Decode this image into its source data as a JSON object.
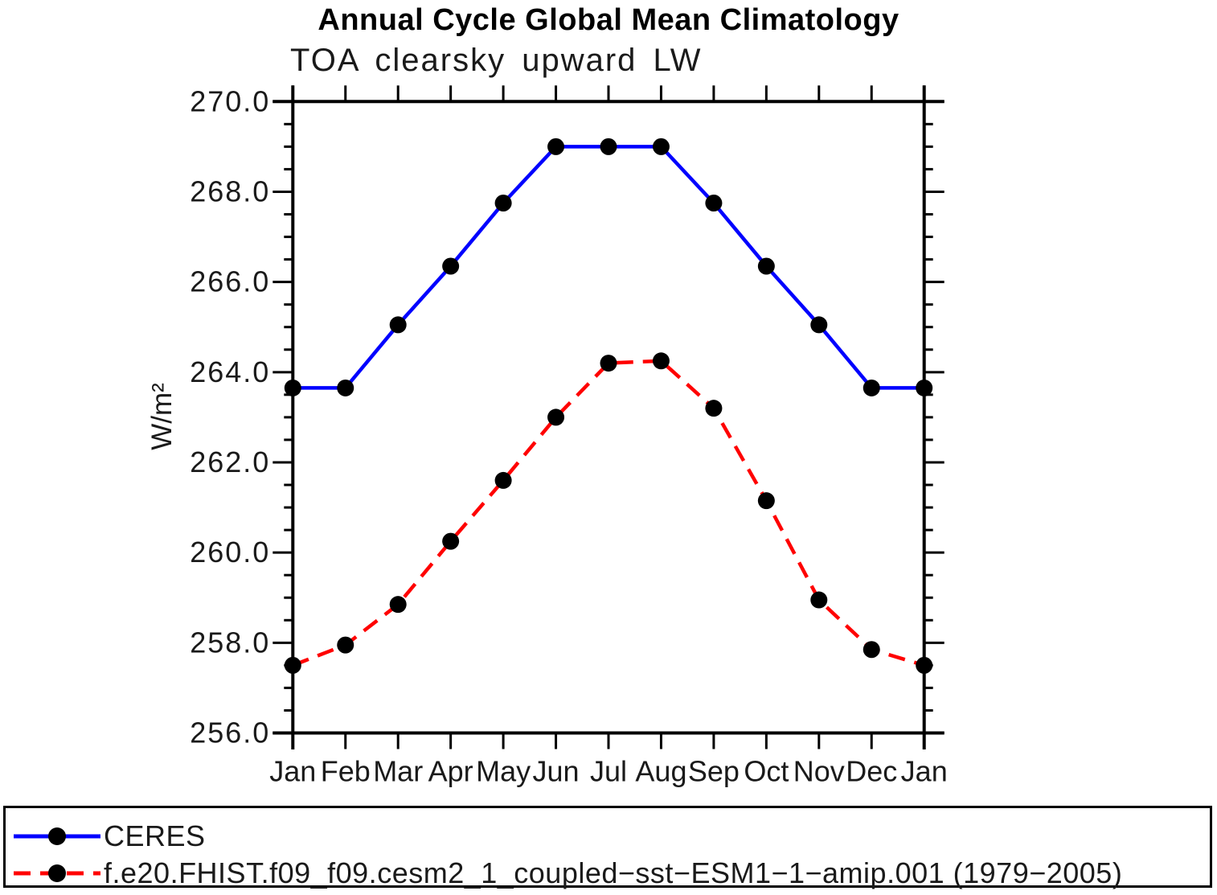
{
  "page": {
    "background": "#ffffff"
  },
  "chart_data": {
    "type": "line",
    "title": "Annual Cycle Global Mean Climatology",
    "subtitle": "TOA clearsky upward LW",
    "ylabel": "W/m²",
    "xlabel": "",
    "categories": [
      "Jan",
      "Feb",
      "Mar",
      "Apr",
      "May",
      "Jun",
      "Jul",
      "Aug",
      "Sep",
      "Oct",
      "Nov",
      "Dec",
      "Jan"
    ],
    "ylim": [
      256.0,
      270.0
    ],
    "ytick_major_step": 2.0,
    "ytick_minor_step": 0.5,
    "ytick_labels": [
      "256.0",
      "258.0",
      "260.0",
      "262.0",
      "264.0",
      "266.0",
      "268.0",
      "270.0"
    ],
    "grid": false,
    "legend_position": "bottom-box-full-width",
    "axis_color": "#000000",
    "marker_color": "#000000",
    "series": [
      {
        "name": "CERES",
        "color": "#0000ff",
        "line_style": "solid",
        "marker": "filled-circle",
        "values": [
          263.65,
          263.65,
          265.05,
          266.35,
          267.75,
          269.0,
          269.0,
          269.0,
          267.75,
          266.35,
          265.05,
          263.65,
          263.65
        ]
      },
      {
        "name": "f.e20.FHIST.f09_f09.cesm2_1_coupled−sst−ESM1−1−amip.001 (1979−2005)",
        "color": "#ff0000",
        "line_style": "dashed",
        "marker": "filled-circle",
        "values": [
          257.5,
          257.95,
          258.85,
          260.25,
          261.6,
          263.0,
          264.2,
          264.25,
          263.2,
          261.15,
          258.95,
          257.85,
          257.5
        ]
      }
    ]
  }
}
